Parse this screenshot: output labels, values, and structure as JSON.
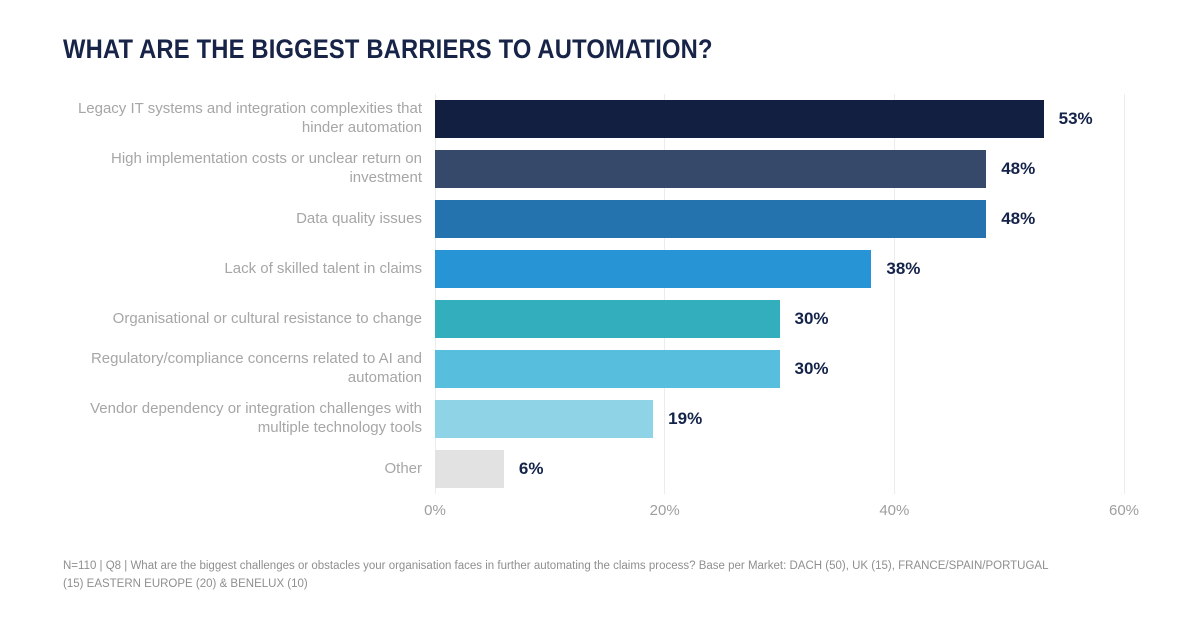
{
  "title": "WHAT ARE THE BIGGEST BARRIERS TO AUTOMATION?",
  "chart_data": {
    "type": "bar",
    "orientation": "horizontal",
    "title": "WHAT ARE THE BIGGEST BARRIERS TO AUTOMATION?",
    "categories": [
      "Legacy IT systems and integration complexities that hinder automation",
      "High implementation costs or unclear return on investment",
      "Data quality issues",
      "Lack of skilled talent in claims",
      "Organisational or cultural resistance to change",
      "Regulatory/compliance concerns related to AI and automation",
      "Vendor dependency or integration challenges with multiple technology tools",
      "Other"
    ],
    "values": [
      53,
      48,
      48,
      38,
      30,
      30,
      19,
      6
    ],
    "value_labels": [
      "53%",
      "48%",
      "48%",
      "38%",
      "30%",
      "30%",
      "19%",
      "6%"
    ],
    "bar_colors": [
      "#131f40",
      "#36496a",
      "#2472ae",
      "#2795d5",
      "#32aebd",
      "#58bedd",
      "#8fd4e6",
      "#e2e2e2"
    ],
    "xlim": [
      0,
      60
    ],
    "x_ticks": [
      "0%",
      "20%",
      "40%",
      "60%"
    ],
    "x_tick_values": [
      0,
      20,
      40,
      60
    ],
    "grid": "vertical-gridlines",
    "legend": "none",
    "xlabel": "",
    "ylabel": ""
  },
  "footnote": {
    "lines": [
      "N=110 | Q8 | What are the biggest challenges or obstacles your organisation faces in further automating the claims process? Base per Market: DACH (50), UK (15), FRANCE/SPAIN/PORTUGAL",
      "(15) EASTERN EUROPE (20) & BENELUX (10)"
    ]
  },
  "colors": {
    "title_text": "#172448",
    "value_label_text": "#14234a",
    "category_label_text": "#a6a6a6",
    "axis_tick_text": "#9e9e9e",
    "footnote_text": "#8f8f8f",
    "gridline": "#ececec",
    "background": "#ffffff"
  }
}
